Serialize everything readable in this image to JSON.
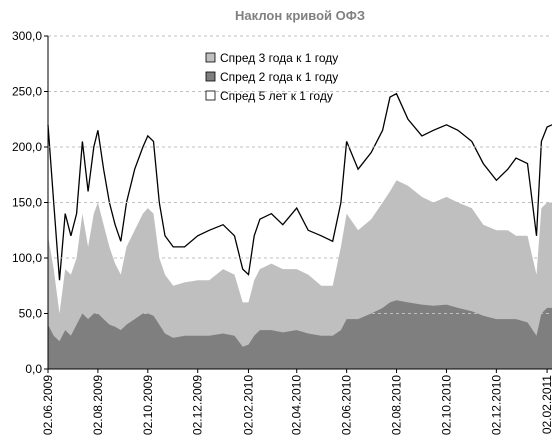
{
  "chart_data": {
    "type": "area-line",
    "title": "Наклон кривой ОФЗ",
    "x": [
      "02.06.2009",
      "09.06.2009",
      "16.06.2009",
      "23.06.2009",
      "30.06.2009",
      "07.07.2009",
      "14.07.2009",
      "21.07.2009",
      "28.07.2009",
      "02.08.2009",
      "09.08.2009",
      "16.08.2009",
      "23.08.2009",
      "30.08.2009",
      "06.09.2009",
      "16.09.2009",
      "26.09.2009",
      "02.10.2009",
      "09.10.2009",
      "16.10.2009",
      "23.10.2009",
      "02.11.2009",
      "16.11.2009",
      "02.12.2009",
      "16.12.2009",
      "02.01.2010",
      "16.01.2010",
      "26.01.2010",
      "02.02.2010",
      "09.02.2010",
      "16.02.2010",
      "02.03.2010",
      "16.03.2010",
      "02.04.2010",
      "16.04.2010",
      "02.05.2010",
      "16.05.2010",
      "26.05.2010",
      "02.06.2010",
      "16.06.2010",
      "02.07.2010",
      "16.07.2010",
      "25.07.2010",
      "02.08.2010",
      "16.08.2010",
      "02.09.2010",
      "16.09.2010",
      "02.10.2010",
      "16.10.2010",
      "02.11.2010",
      "16.11.2010",
      "02.12.2010",
      "16.12.2010",
      "26.12.2010",
      "09.01.2011",
      "20.01.2011",
      "26.01.2011",
      "02.02.2011",
      "08.02.2011"
    ],
    "series": [
      {
        "name": "Спред 3 года к 1 году",
        "color": "#bfbfbf",
        "kind": "area",
        "values": [
          120,
          90,
          50,
          90,
          85,
          100,
          140,
          110,
          140,
          150,
          130,
          110,
          95,
          85,
          110,
          125,
          140,
          145,
          140,
          100,
          85,
          75,
          78,
          80,
          80,
          90,
          85,
          60,
          60,
          80,
          90,
          95,
          90,
          90,
          85,
          75,
          75,
          110,
          140,
          125,
          135,
          150,
          160,
          170,
          165,
          155,
          150,
          155,
          150,
          145,
          130,
          125,
          125,
          120,
          120,
          85,
          145,
          150,
          150
        ]
      },
      {
        "name": "Спред 2 года к 1 году",
        "color": "#7f7f7f",
        "kind": "area",
        "values": [
          40,
          30,
          25,
          35,
          30,
          40,
          50,
          45,
          50,
          50,
          45,
          40,
          38,
          35,
          40,
          45,
          50,
          50,
          48,
          40,
          32,
          28,
          30,
          30,
          30,
          32,
          30,
          20,
          22,
          30,
          35,
          35,
          33,
          35,
          32,
          30,
          30,
          35,
          45,
          45,
          50,
          55,
          60,
          62,
          60,
          58,
          57,
          58,
          55,
          52,
          48,
          45,
          45,
          45,
          42,
          30,
          50,
          55,
          55
        ]
      },
      {
        "name": "Спред 5 лет к 1 году",
        "color": "#000000",
        "kind": "line",
        "values": [
          220,
          150,
          80,
          140,
          120,
          140,
          205,
          160,
          200,
          215,
          180,
          150,
          130,
          115,
          150,
          180,
          200,
          210,
          205,
          150,
          120,
          110,
          110,
          120,
          125,
          130,
          120,
          90,
          85,
          120,
          135,
          140,
          130,
          145,
          125,
          120,
          115,
          150,
          205,
          180,
          195,
          215,
          245,
          248,
          225,
          210,
          215,
          220,
          215,
          205,
          185,
          170,
          180,
          190,
          185,
          120,
          205,
          218,
          220
        ]
      }
    ],
    "xlim": [
      "02.06.2009",
      "08.02.2011"
    ],
    "xticks": [
      "02.06.2009",
      "02.08.2009",
      "02.10.2009",
      "02.12.2009",
      "02.02.2010",
      "02.04.2010",
      "02.06.2010",
      "02.08.2010",
      "02.10.2010",
      "02.12.2010",
      "02.02.2011"
    ],
    "ylim": [
      0,
      300
    ],
    "yticks": [
      {
        "value": 0,
        "label": "0,0"
      },
      {
        "value": 50,
        "label": "50,0"
      },
      {
        "value": 100,
        "label": "100,0"
      },
      {
        "value": 150,
        "label": "150,0"
      },
      {
        "value": 200,
        "label": "200,0"
      },
      {
        "value": 250,
        "label": "250,0"
      },
      {
        "value": 300,
        "label": "300,0"
      }
    ],
    "grid": true
  }
}
